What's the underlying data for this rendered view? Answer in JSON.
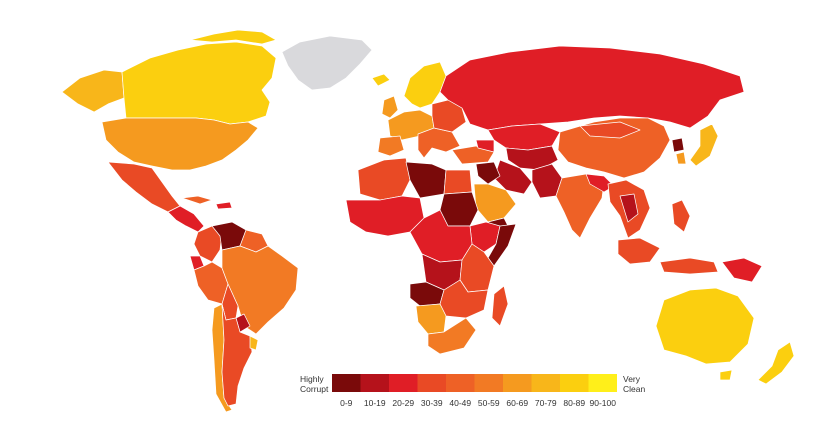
{
  "legend": {
    "low_label_line1": "Highly",
    "low_label_line2": "Corrupt",
    "high_label_line1": "Very",
    "high_label_line2": "Clean",
    "bins": [
      {
        "label": "0-9",
        "color": "#7a0a0a"
      },
      {
        "label": "10-19",
        "color": "#b5121b"
      },
      {
        "label": "20-29",
        "color": "#e01e26"
      },
      {
        "label": "30-39",
        "color": "#e94a25"
      },
      {
        "label": "40-49",
        "color": "#ee6126"
      },
      {
        "label": "50-59",
        "color": "#f27a24"
      },
      {
        "label": "60-69",
        "color": "#f59a1f"
      },
      {
        "label": "70-79",
        "color": "#f8b61a"
      },
      {
        "label": "80-89",
        "color": "#fbcf0f"
      },
      {
        "label": "90-100",
        "color": "#ffef1a"
      }
    ]
  },
  "palette": {
    "no_data": "#d9d9dc",
    "border": "#ffffff",
    "background": "#ffffff"
  }
}
